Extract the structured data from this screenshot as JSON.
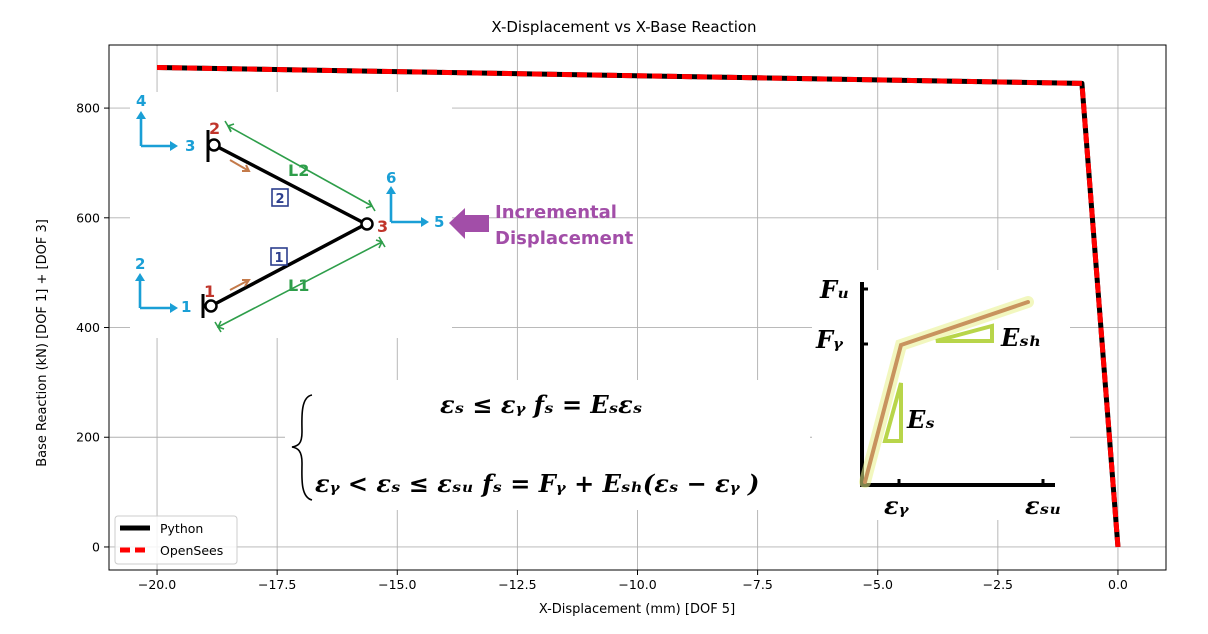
{
  "chart_data": {
    "type": "line",
    "title": "X-Displacement vs X-Base Reaction",
    "xlabel": "X-Displacement (mm) [DOF 5]",
    "ylabel": "Base Reaction (kN) [DOF 1] + [DOF 3]",
    "xlim": [
      -21.0,
      1.0
    ],
    "ylim": [
      -42,
      915
    ],
    "xticks": [
      -20.0,
      -17.5,
      -15.0,
      -12.5,
      -10.0,
      -7.5,
      -5.0,
      -2.5,
      0.0
    ],
    "xtick_labels": [
      "−20.0",
      "−17.5",
      "−15.0",
      "−12.5",
      "−10.0",
      "−7.5",
      "−5.0",
      "−2.5",
      "0.0"
    ],
    "yticks": [
      0,
      200,
      400,
      600,
      800
    ],
    "ytick_labels": [
      "0",
      "200",
      "400",
      "600",
      "800"
    ],
    "grid": true,
    "legend_position": "lower-left",
    "series": [
      {
        "name": "Python",
        "color": "#000000",
        "style": "solid",
        "x": [
          -20.0,
          -0.75,
          0.0
        ],
        "y": [
          874,
          845,
          0
        ]
      },
      {
        "name": "OpenSees",
        "color": "#ff0000",
        "style": "dashed",
        "x": [
          -20.0,
          -0.75,
          0.0
        ],
        "y": [
          874,
          845,
          0
        ]
      }
    ],
    "annotations": {
      "load_label": [
        "Incremental",
        "Displacement"
      ],
      "element_labels": [
        "L2",
        "L1"
      ],
      "element_numbers": [
        "2",
        "1"
      ],
      "node_numbers": [
        "1",
        "2",
        "3"
      ],
      "dof_numbers": [
        "1",
        "2",
        "3",
        "4",
        "5",
        "6"
      ],
      "equation_lines": [
        "εₛ ≤ εᵧ    fₛ = Eₛεₛ",
        "εᵧ  < εₛ ≤ εₛᵤ    fₛ = Fᵧ + Eₛₕ(εₛ − εᵧ )"
      ],
      "material_labels": {
        "fu": "Fᵤ",
        "fy": "Fᵧ",
        "esh": "Eₛₕ",
        "es": "Eₛ",
        "eps_y": "εᵧ",
        "eps_su": "εₛᵤ"
      }
    }
  }
}
